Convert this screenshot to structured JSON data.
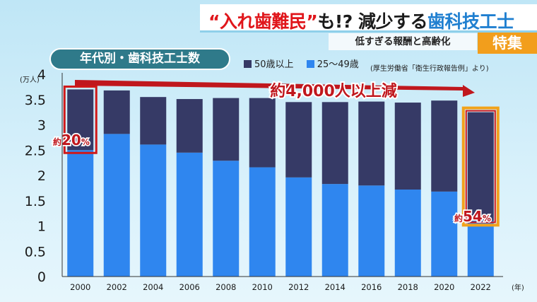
{
  "header": {
    "headline_part1": "“入れ歯難民”",
    "headline_part2": "も!? 減少する",
    "headline_part3": "歯科技工士",
    "subtitle": "低すぎる報酬と高齢化",
    "badge": "特集"
  },
  "source_note": "(厚生労働省「衛生行政報告例」より)",
  "annotations": {
    "arrow_label": "約4,000人以上減",
    "start_share_prefix": "約",
    "start_share_value": "20",
    "start_share_unit": "%",
    "end_share_prefix": "約",
    "end_share_value": "54",
    "end_share_unit": "%"
  },
  "colors": {
    "series_50plus": "#363a66",
    "series_25_49": "#2f86ef",
    "accent_red": "#c0171d",
    "highlight_orange": "#f2a21b"
  },
  "chart_data": {
    "type": "bar",
    "stacked": true,
    "title": "年代別・歯科技工士数",
    "ylabel": "(万人)",
    "xlabel": "(年)",
    "ylim": [
      0,
      4
    ],
    "yticks": [
      "0",
      "0.5",
      "1",
      "1.5",
      "2",
      "2.5",
      "3",
      "3.5",
      "4"
    ],
    "grid": false,
    "legend_position": "top",
    "categories": [
      "2000",
      "2002",
      "2004",
      "2006",
      "2008",
      "2010",
      "2012",
      "2014",
      "2016",
      "2018",
      "2020",
      "2022"
    ],
    "series": [
      {
        "name": "25～49歳",
        "values": [
          2.5,
          2.82,
          2.61,
          2.45,
          2.29,
          2.16,
          1.96,
          1.83,
          1.8,
          1.72,
          1.68,
          1.1
        ]
      },
      {
        "name": "50歳以上",
        "values": [
          1.2,
          0.86,
          0.94,
          1.06,
          1.24,
          1.37,
          1.49,
          1.62,
          1.66,
          1.72,
          1.8,
          2.15
        ]
      }
    ]
  }
}
